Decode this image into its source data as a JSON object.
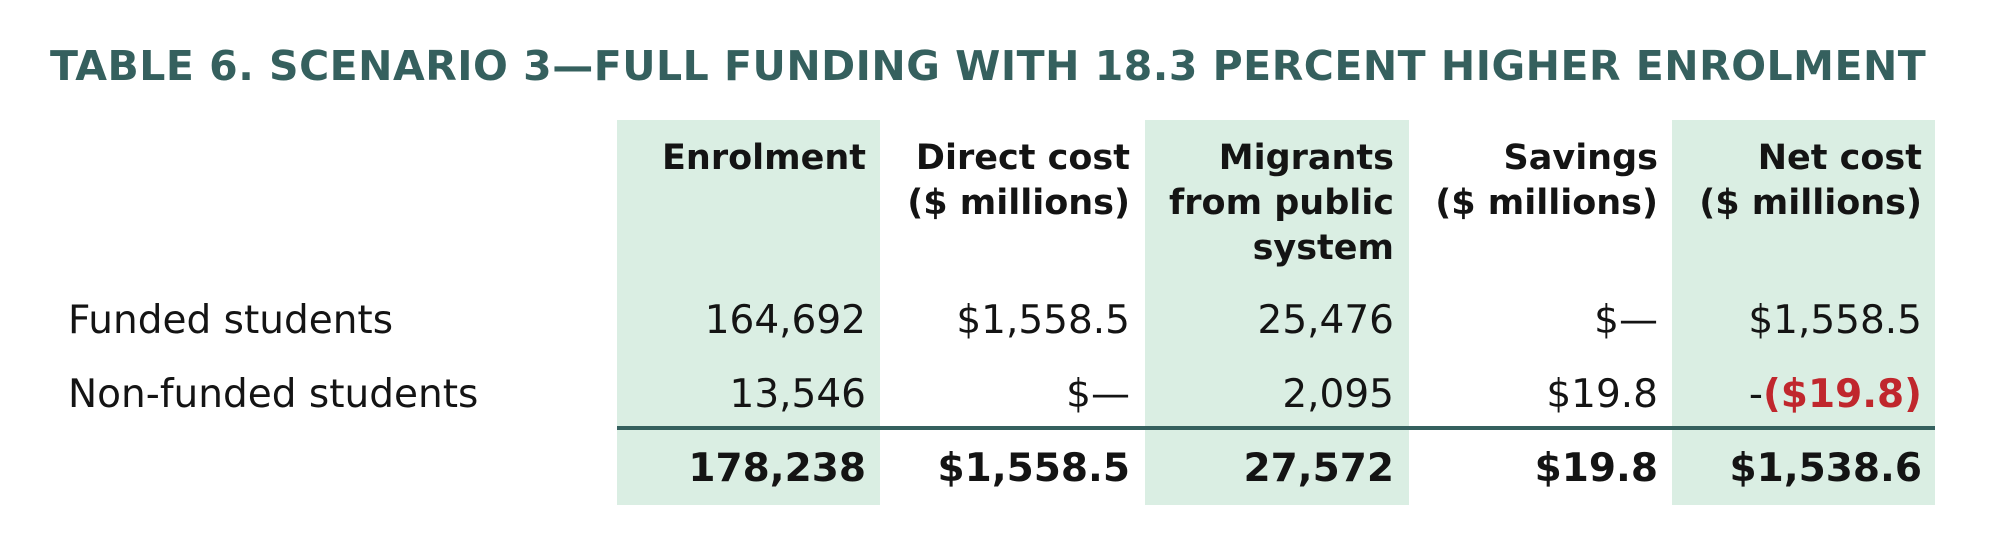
{
  "title": "TABLE 6. SCENARIO 3—FULL FUNDING WITH 18.3 PERCENT HIGHER ENROLMENT",
  "columns": [
    {
      "lines": [
        "Enrolment"
      ]
    },
    {
      "lines": [
        "Direct cost",
        "($ millions)"
      ]
    },
    {
      "lines": [
        "Migrants",
        "from public",
        "system"
      ]
    },
    {
      "lines": [
        "Savings",
        "($ millions)"
      ]
    },
    {
      "lines": [
        "Net cost",
        "($ millions)"
      ]
    }
  ],
  "rows": [
    {
      "label": "Funded students",
      "cells": [
        "164,692",
        "$1,558.5",
        "25,476",
        "$—",
        "$1,558.5"
      ]
    },
    {
      "label": "Non-funded students",
      "cells": [
        "13,546",
        "$—",
        "2,095",
        "$19.8"
      ],
      "net_cost_prefix": "-",
      "net_cost_value": "($19.8)"
    }
  ],
  "total": {
    "cells": [
      "178,238",
      "$1,558.5",
      "27,572",
      "$19.8",
      "$1,538.6"
    ]
  },
  "colors": {
    "title": "#35605e",
    "shade": "#daeee3",
    "rule": "#35605e",
    "negative": "#c0272d"
  }
}
